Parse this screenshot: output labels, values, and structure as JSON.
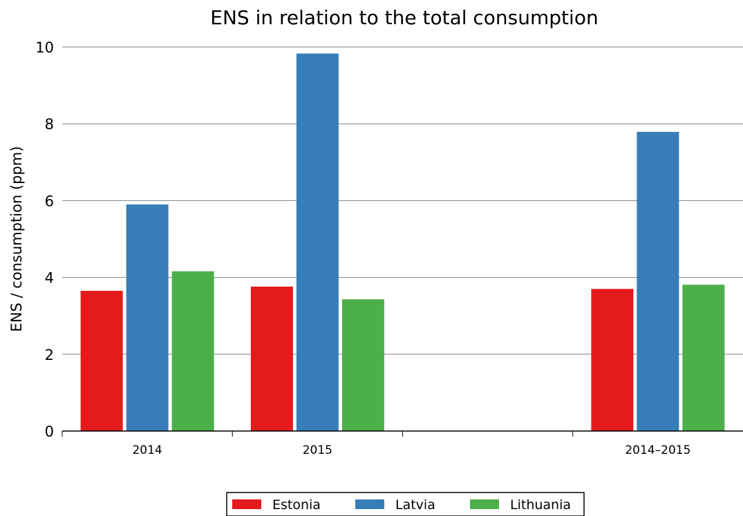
{
  "chart_data": {
    "type": "bar",
    "title": "ENS in relation to the total consumption",
    "xlabel": "",
    "ylabel": "ENS / consumption (ppm)",
    "ylim": [
      0,
      10
    ],
    "yticks": [
      "0",
      "2",
      "4",
      "6",
      "8",
      "10"
    ],
    "categories": [
      "2014",
      "2015",
      "",
      "2014–2015"
    ],
    "series": [
      {
        "name": "Estonia",
        "color": "#e41a1c",
        "values": [
          3.65,
          3.76,
          null,
          3.7
        ]
      },
      {
        "name": "Latvia",
        "color": "#377eb8",
        "values": [
          5.9,
          9.83,
          null,
          7.79
        ]
      },
      {
        "name": "Lithuania",
        "color": "#4daf4a",
        "values": [
          4.16,
          3.43,
          null,
          3.81
        ]
      }
    ],
    "grid": "horizontal",
    "legend_position": "bottom"
  }
}
